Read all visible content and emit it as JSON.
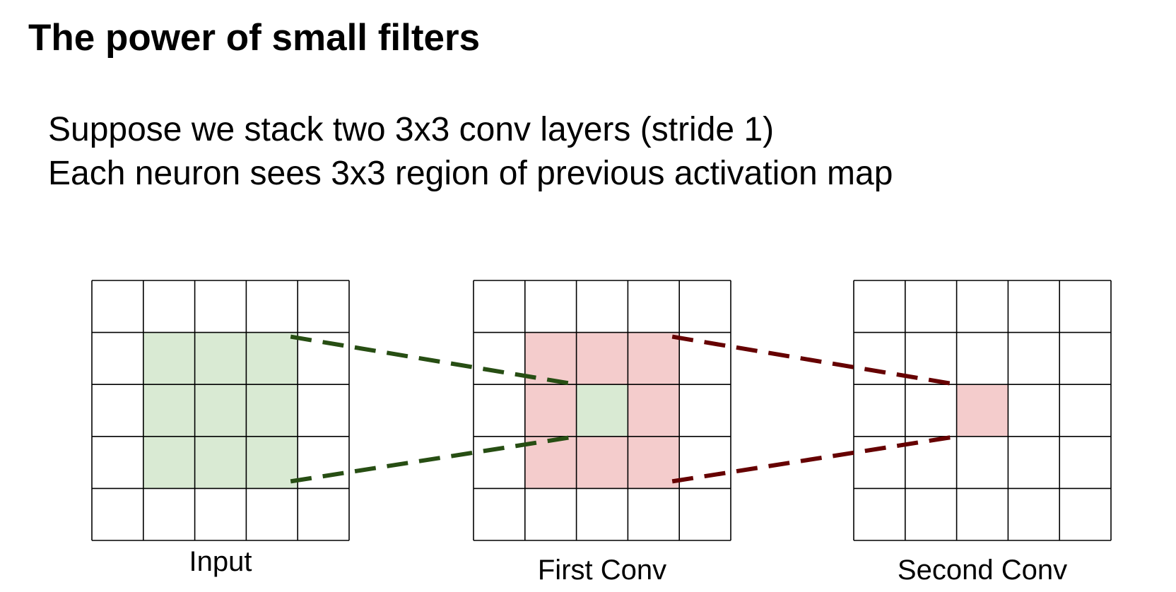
{
  "slide": {
    "title": "The power of small filters",
    "lines": [
      "Suppose we stack two 3x3 conv layers (stride 1)",
      "Each neuron sees 3x3 region of previous activation map"
    ]
  },
  "diagram": {
    "grid_rows": 5,
    "grid_cols": 5,
    "grids": [
      {
        "label": "Input",
        "highlights": [
          {
            "row": 1,
            "col": 1,
            "color": "#d9ead3"
          },
          {
            "row": 1,
            "col": 2,
            "color": "#d9ead3"
          },
          {
            "row": 1,
            "col": 3,
            "color": "#d9ead3"
          },
          {
            "row": 2,
            "col": 1,
            "color": "#d9ead3"
          },
          {
            "row": 2,
            "col": 2,
            "color": "#d9ead3"
          },
          {
            "row": 2,
            "col": 3,
            "color": "#d9ead3"
          },
          {
            "row": 3,
            "col": 1,
            "color": "#d9ead3"
          },
          {
            "row": 3,
            "col": 2,
            "color": "#d9ead3"
          },
          {
            "row": 3,
            "col": 3,
            "color": "#d9ead3"
          }
        ]
      },
      {
        "label": "First Conv",
        "highlights": [
          {
            "row": 1,
            "col": 1,
            "color": "#f4cccc"
          },
          {
            "row": 1,
            "col": 2,
            "color": "#f4cccc"
          },
          {
            "row": 1,
            "col": 3,
            "color": "#f4cccc"
          },
          {
            "row": 2,
            "col": 1,
            "color": "#f4cccc"
          },
          {
            "row": 2,
            "col": 2,
            "color": "#d9ead3"
          },
          {
            "row": 2,
            "col": 3,
            "color": "#f4cccc"
          },
          {
            "row": 3,
            "col": 1,
            "color": "#f4cccc"
          },
          {
            "row": 3,
            "col": 2,
            "color": "#f4cccc"
          },
          {
            "row": 3,
            "col": 3,
            "color": "#f4cccc"
          }
        ]
      },
      {
        "label": "Second Conv",
        "highlights": [
          {
            "row": 2,
            "col": 2,
            "color": "#f4cccc"
          }
        ]
      }
    ],
    "connectors": [
      {
        "from_grid": 0,
        "to_grid": 1,
        "color": "#274e13"
      },
      {
        "from_grid": 1,
        "to_grid": 2,
        "color": "#660000"
      }
    ]
  }
}
